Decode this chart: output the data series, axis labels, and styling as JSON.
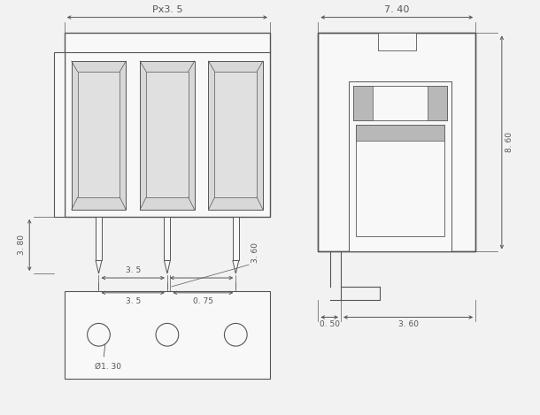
{
  "bg_color": "#f2f2f2",
  "line_color": "#555555",
  "dim_color": "#555555",
  "gray_fill": "#b8b8b8",
  "light_gray": "#d8d8d8",
  "white_fill": "#f8f8f8",
  "hatch_fill": "#e0e0e0",
  "labels": {
    "px35": "Px3. 5",
    "dim_38": "3. 80",
    "dim_35_front": "3. 5",
    "dim_075": "0. 75",
    "dim_740": "7. 40",
    "dim_860": "8. 60",
    "dim_050": "0. 50",
    "dim_360_side": "3. 60",
    "dim_35_bot": "3. 5",
    "dim_360_bot": "3. 60",
    "dim_130": "Ø1. 30"
  }
}
